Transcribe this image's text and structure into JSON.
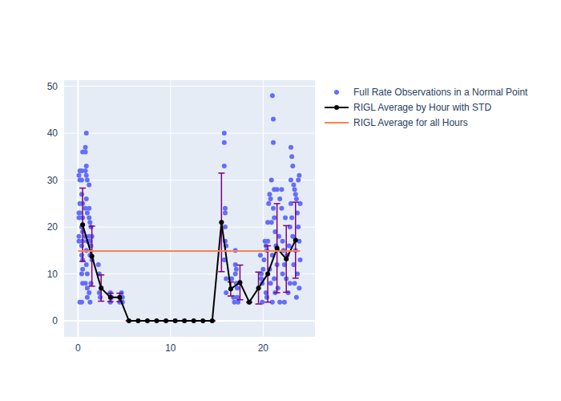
{
  "chart_data": {
    "type": "scatter",
    "grid": true,
    "legend": "right",
    "xlim": [
      -1.5,
      25.6
    ],
    "ylim": [
      -3.4,
      51.3
    ],
    "xticks": [
      0,
      10,
      20
    ],
    "yticks": [
      0,
      10,
      20,
      30,
      40,
      50
    ],
    "series": [
      {
        "name": "Full Rate Observations in a Normal Point",
        "type": "scatter",
        "marker": "circle",
        "color": "#636efa",
        "x": [
          0.1,
          0.1,
          0.1,
          0.1,
          0.1,
          0.2,
          0.2,
          0.2,
          0.2,
          0.2,
          0.4,
          0.4,
          0.4,
          0.4,
          0.4,
          0.4,
          0.4,
          0.4,
          0.5,
          0.5,
          0.5,
          0.5,
          0.5,
          0.5,
          0.5,
          0.5,
          0.8,
          0.8,
          0.8,
          0.8,
          0.8,
          0.8,
          0.9,
          0.9,
          0.9,
          0.9,
          0.9,
          0.9,
          1.0,
          1.0,
          1.0,
          1.0,
          1.0,
          1.0,
          1.2,
          1.2,
          1.2,
          1.2,
          1.2,
          1.3,
          1.3,
          1.3,
          1.3,
          1.4,
          1.4,
          1.4,
          1.5,
          1.5,
          2.2,
          2.3,
          2.3,
          2.4,
          2.5,
          3.5,
          3.5,
          3.6,
          3.6,
          4.5,
          4.6,
          4.7,
          4.8,
          4.8,
          15.8,
          15.8,
          15.8,
          15.9,
          15.9,
          15.9,
          15.9,
          16.0,
          16.0,
          16.0,
          15.8,
          16.6,
          16.8,
          16.9,
          17.0,
          17.0,
          17.1,
          17.1,
          17.2,
          17.2,
          17.3,
          17.0,
          18.5,
          19.7,
          19.8,
          19.8,
          19.9,
          19.9,
          20.0,
          20.1,
          20.2,
          20.3,
          20.3,
          20.4,
          20.4,
          20.5,
          20.5,
          20.6,
          20.7,
          20.7,
          20.8,
          20.8,
          20.9,
          20.9,
          21.0,
          21.0,
          21.0,
          21.1,
          21.1,
          21.1,
          21.2,
          21.2,
          21.2,
          21.3,
          21.3,
          21.4,
          21.5,
          21.5,
          21.6,
          21.7,
          21.8,
          21.8,
          22.0,
          22.0,
          22.1,
          22.1,
          22.2,
          22.3,
          22.3,
          22.4,
          22.5,
          22.6,
          22.7,
          22.8,
          22.9,
          22.9,
          23.0,
          23.0,
          23.0,
          23.1,
          23.1,
          23.2,
          23.2,
          23.3,
          23.3,
          23.4,
          23.4,
          23.5,
          23.5,
          23.6,
          23.6,
          23.7,
          23.7,
          23.8,
          23.8,
          23.9,
          23.9,
          23.9,
          24.0,
          24.0
        ],
        "values": [
          31,
          23,
          22,
          18,
          17,
          32,
          30,
          25,
          23,
          4,
          32,
          30,
          27,
          20,
          16,
          14,
          10,
          4,
          25,
          22,
          17,
          13,
          11,
          8,
          36,
          19,
          36,
          37,
          32,
          24,
          18,
          8,
          40,
          33,
          31,
          26,
          15,
          12,
          30,
          23,
          17,
          10,
          7,
          5,
          29,
          24,
          22,
          18,
          6,
          21,
          17,
          14,
          4,
          20,
          16,
          8,
          18,
          13,
          12,
          10,
          6,
          5,
          7,
          6,
          4,
          5,
          5,
          4,
          5,
          6,
          5,
          4,
          40,
          38,
          33,
          24,
          23,
          20,
          17,
          16,
          9,
          6,
          13,
          9,
          5,
          4,
          15,
          12,
          11,
          8,
          7,
          5,
          4,
          10,
          4,
          14,
          10,
          9,
          8,
          4,
          11,
          13,
          17,
          16,
          6,
          15,
          5,
          21,
          17,
          25,
          27,
          11,
          26,
          8,
          30,
          21,
          14,
          4,
          48,
          43,
          38,
          24,
          28,
          22,
          9,
          19,
          6,
          16,
          28,
          12,
          7,
          18,
          4,
          26,
          28,
          24,
          17,
          10,
          15,
          12,
          4,
          22,
          9,
          14,
          6,
          16,
          20,
          8,
          37,
          30,
          25,
          35,
          22,
          33,
          18,
          29,
          12,
          28,
          8,
          27,
          15,
          26,
          5,
          23,
          10,
          30,
          20,
          31,
          17,
          7,
          25,
          13
        ]
      },
      {
        "name": "RIGL Average by Hour with STD",
        "type": "line",
        "marker": "circle",
        "color": "#000000",
        "x": [
          0.5,
          1.5,
          2.5,
          3.5,
          4.5,
          5.5,
          6.5,
          7.5,
          8.5,
          9.5,
          10.5,
          11.5,
          12.5,
          13.5,
          14.5,
          15.5,
          16.5,
          17.5,
          18.5,
          19.5,
          20.5,
          21.5,
          22.5,
          23.5
        ],
        "values": [
          20.5,
          13.8,
          7,
          5,
          5,
          0,
          0,
          0,
          0,
          0,
          0,
          0,
          0,
          0,
          0,
          21,
          6.8,
          8.2,
          4,
          7,
          10,
          15.5,
          13.2,
          17.2
        ],
        "error": [
          7.8,
          6.4,
          2.8,
          0.9,
          0.9,
          0,
          0,
          0,
          0,
          0,
          0,
          0,
          0,
          0,
          0,
          10.5,
          1.5,
          3.7,
          0,
          3.4,
          6,
          9.5,
          7.1,
          8.1
        ]
      },
      {
        "name": "RIGL Average for all Hours",
        "type": "line",
        "color": "#ff7f50",
        "x": [
          0,
          24
        ],
        "values": [
          14.9,
          14.9
        ]
      }
    ]
  }
}
